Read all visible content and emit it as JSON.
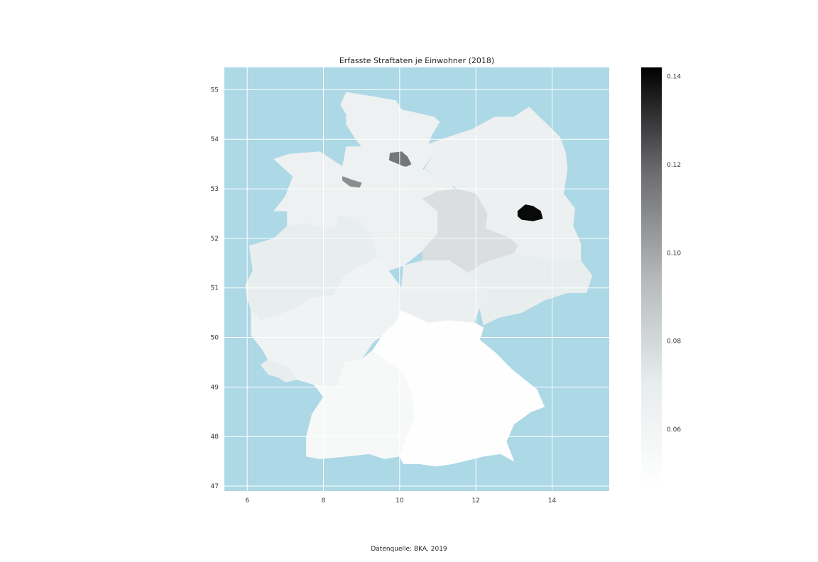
{
  "chart_data": {
    "type": "choropleth",
    "title": "Erfasste Straftaten je Einwohner (2018)",
    "xlabel": "",
    "ylabel": "",
    "x_ticks": [
      6,
      8,
      10,
      12,
      14
    ],
    "y_ticks": [
      47,
      48,
      49,
      50,
      51,
      52,
      53,
      54,
      55
    ],
    "xlim": [
      5.4,
      15.5
    ],
    "ylim": [
      46.9,
      55.45
    ],
    "grid": true,
    "background_color": "#add8e6",
    "colormap": "bone_r",
    "colorbar": {
      "range": [
        0.047,
        0.142
      ],
      "ticks": [
        0.06,
        0.08,
        0.1,
        0.12,
        0.14
      ],
      "tick_labels": [
        "0.06",
        "0.08",
        "0.10",
        "0.12",
        "0.14"
      ]
    },
    "regions": [
      {
        "name": "Schleswig-Holstein",
        "value": 0.065
      },
      {
        "name": "Hamburg",
        "value": 0.115
      },
      {
        "name": "Niedersachsen",
        "value": 0.064
      },
      {
        "name": "Bremen",
        "value": 0.108
      },
      {
        "name": "Nordrhein-Westfalen",
        "value": 0.07
      },
      {
        "name": "Hessen",
        "value": 0.062
      },
      {
        "name": "Rheinland-Pfalz",
        "value": 0.062
      },
      {
        "name": "Saarland",
        "value": 0.07
      },
      {
        "name": "Baden-Württemberg",
        "value": 0.055
      },
      {
        "name": "Bayern",
        "value": 0.048
      },
      {
        "name": "Mecklenburg-Vorpommern",
        "value": 0.066
      },
      {
        "name": "Brandenburg",
        "value": 0.066
      },
      {
        "name": "Berlin",
        "value": 0.14
      },
      {
        "name": "Sachsen-Anhalt",
        "value": 0.077
      },
      {
        "name": "Thüringen",
        "value": 0.067
      },
      {
        "name": "Sachsen",
        "value": 0.07
      }
    ]
  },
  "caption": "Datenquelle: BKA, 2019"
}
